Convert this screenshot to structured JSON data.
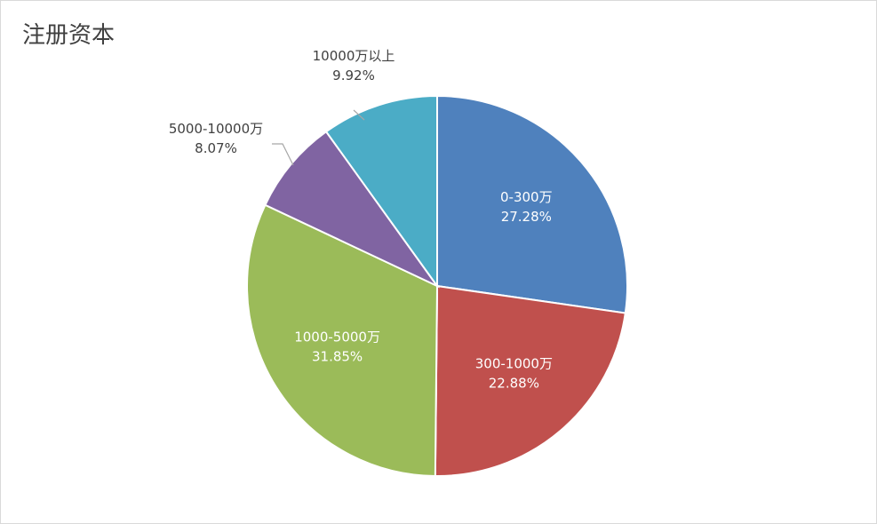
{
  "chart_data": {
    "type": "pie",
    "title": "注册资本",
    "slices": [
      {
        "label": "0-300万",
        "percent_text": "27.28%",
        "value": 27.28,
        "color": "#4F81BD",
        "label_color": "#ffffff"
      },
      {
        "label": "300-1000万",
        "percent_text": "22.88%",
        "value": 22.88,
        "color": "#C0504D",
        "label_color": "#ffffff"
      },
      {
        "label": "1000-5000万",
        "percent_text": "31.85%",
        "value": 31.85,
        "color": "#9BBB59",
        "label_color": "#ffffff"
      },
      {
        "label": "5000-10000万",
        "percent_text": "8.07%",
        "value": 8.07,
        "color": "#8064A2",
        "label_color": "#404040"
      },
      {
        "label": "10000万以上",
        "percent_text": "9.92%",
        "value": 9.92,
        "color": "#4BACC6",
        "label_color": "#404040"
      }
    ]
  }
}
